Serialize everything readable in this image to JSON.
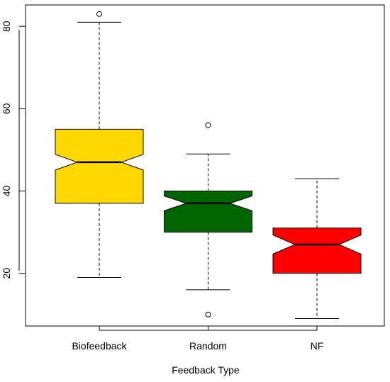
{
  "chart_data": {
    "type": "boxplot",
    "notched": true,
    "title": "",
    "xlabel": "Feedback Type",
    "ylabel": "",
    "categories": [
      "Biofeedback",
      "Random",
      "NF"
    ],
    "ylim": [
      7.2,
      85.2
    ],
    "yticks": [
      20,
      40,
      60,
      80
    ],
    "grid": false,
    "legend": "none",
    "boxes": [
      {
        "category": "Biofeedback",
        "color": "#FFD700",
        "whisker_low": 19,
        "q1": 37,
        "notch_low": 45.1,
        "median": 47,
        "notch_high": 48.9,
        "q3": 55,
        "whisker_high": 81,
        "outliers": [
          83
        ]
      },
      {
        "category": "Random",
        "color": "#006400",
        "whisker_low": 16,
        "q1": 30,
        "notch_low": 35.2,
        "median": 37,
        "notch_high": 38.8,
        "q3": 40,
        "whisker_high": 49,
        "outliers": [
          56,
          10
        ]
      },
      {
        "category": "NF",
        "color": "#FF0000",
        "whisker_low": 9,
        "q1": 20,
        "notch_low": 24.7,
        "median": 27,
        "notch_high": 29.3,
        "q3": 31,
        "whisker_high": 43,
        "outliers": []
      }
    ]
  }
}
